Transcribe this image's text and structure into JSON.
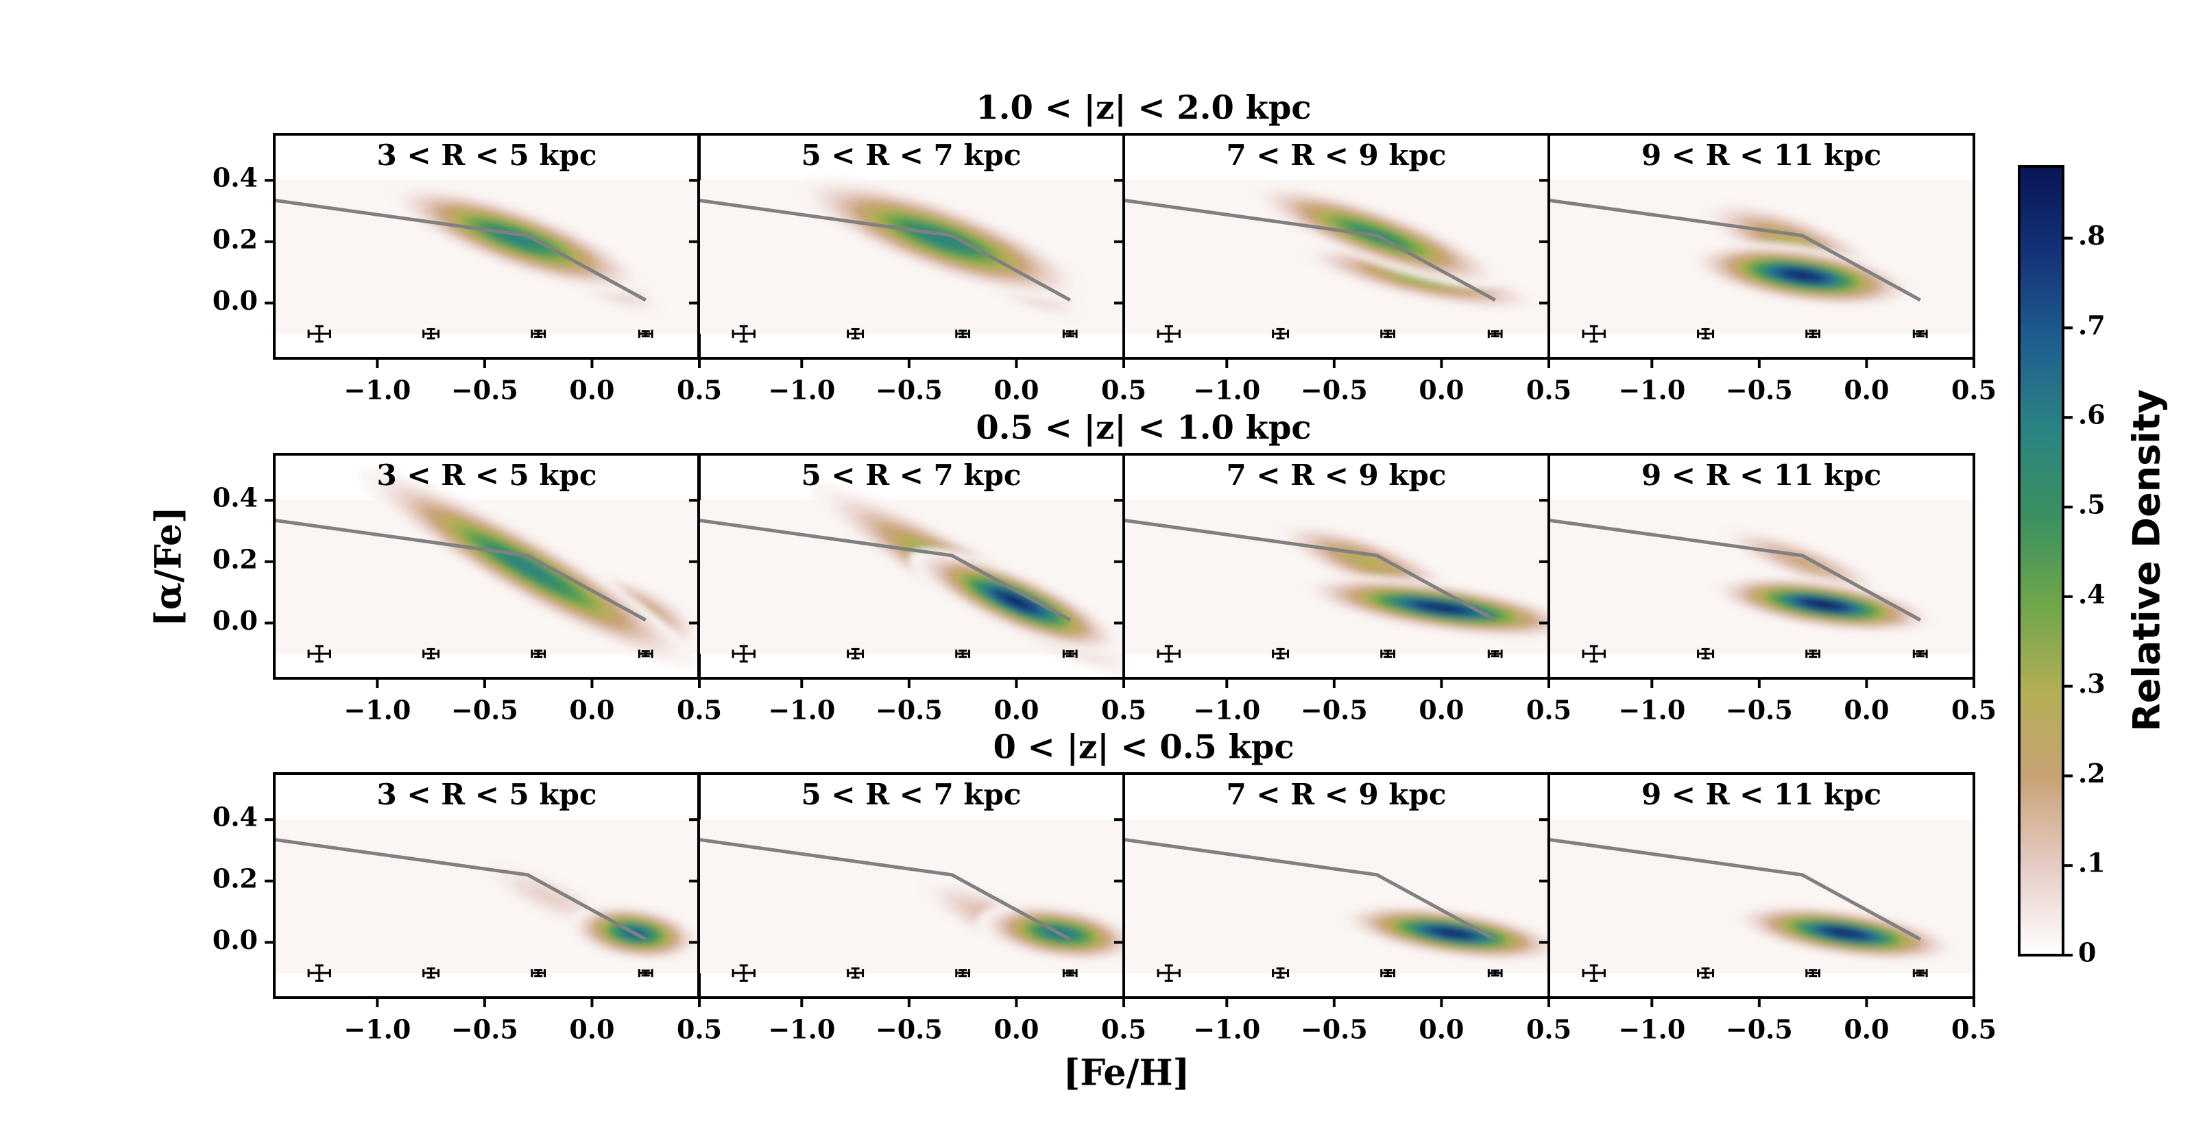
{
  "chart_data": {
    "type": "density_grid",
    "xlabel": "[Fe/H]",
    "ylabel": "[α/Fe]",
    "xlim": [
      -1.48,
      0.5
    ],
    "ylim": [
      -0.18,
      0.55
    ],
    "xticks": [
      {
        "value": -1.0,
        "label": "−1.0"
      },
      {
        "value": -0.5,
        "label": "−0.5"
      },
      {
        "value": 0.0,
        "label": "0.0"
      },
      {
        "value": 0.5,
        "label": "0.5"
      }
    ],
    "yticks": [
      {
        "value": 0.0,
        "label": "0.0"
      },
      {
        "value": 0.2,
        "label": "0.2"
      },
      {
        "value": 0.4,
        "label": "0.4"
      }
    ],
    "kde_bounds": {
      "x": [
        -1.48,
        0.5
      ],
      "y": [
        -0.1,
        0.4
      ],
      "color": "#fbf5f4"
    },
    "boundary": {
      "x": [
        -1.48,
        -0.3,
        0.25
      ],
      "y": [
        0.335,
        0.22,
        0.01
      ],
      "color": "#808080"
    },
    "error_bars": {
      "x": [
        -1.27,
        -0.75,
        -0.25,
        0.25
      ],
      "y": [
        -0.1,
        -0.1,
        -0.1,
        -0.1
      ],
      "xerr": [
        0.05,
        0.035,
        0.03,
        0.03
      ],
      "yerr": [
        0.025,
        0.015,
        0.01,
        0.008
      ]
    },
    "colorbar": {
      "label": "Relative Density",
      "clim": [
        0,
        0.88
      ],
      "ticks": [
        0,
        {
          "value": 0.1,
          "label": ".1"
        },
        {
          "value": 0.2,
          "label": ".2"
        },
        {
          "value": 0.3,
          "label": ".3"
        },
        {
          "value": 0.4,
          "label": ".4"
        },
        {
          "value": 0.5,
          "label": ".5"
        },
        {
          "value": 0.6,
          "label": ".6"
        },
        {
          "value": 0.7,
          "label": ".7"
        },
        {
          "value": 0.8,
          "label": ".8"
        }
      ],
      "colors": [
        "#ffffff",
        "#e6cdc6",
        "#c9a276",
        "#b3ae55",
        "#6fa64a",
        "#3a9160",
        "#2b8483",
        "#1f5f90",
        "#14337a",
        "#081556"
      ]
    },
    "rows": [
      {
        "title": "1.0 < |z| < 2.0 kpc",
        "panels": [
          {
            "title": "3 < R < 5 kpc",
            "blobs": [
              {
                "x": 0.0,
                "y": 0.1,
                "sx": 0.2,
                "sy": 0.04,
                "slope": -0.4,
                "peak": 0.15
              },
              {
                "x": -0.35,
                "y": 0.21,
                "sx": 0.25,
                "sy": 0.04,
                "slope": -0.25,
                "peak": 0.6
              }
            ]
          },
          {
            "title": "5 < R < 7 kpc",
            "blobs": [
              {
                "x": -0.05,
                "y": 0.1,
                "sx": 0.2,
                "sy": 0.04,
                "slope": -0.4,
                "peak": 0.2
              },
              {
                "x": -0.35,
                "y": 0.21,
                "sx": 0.28,
                "sy": 0.045,
                "slope": -0.25,
                "peak": 0.6
              }
            ]
          },
          {
            "title": "7 < R < 9 kpc",
            "blobs": [
              {
                "x": -0.1,
                "y": 0.08,
                "sx": 0.25,
                "sy": 0.03,
                "slope": -0.15,
                "peak": 0.35
              },
              {
                "x": -0.3,
                "y": 0.22,
                "sx": 0.25,
                "sy": 0.035,
                "slope": -0.25,
                "peak": 0.55
              }
            ]
          },
          {
            "title": "9 < R < 11 kpc",
            "blobs": [
              {
                "x": -0.35,
                "y": 0.2,
                "sx": 0.2,
                "sy": 0.04,
                "slope": -0.25,
                "peak": 0.3
              },
              {
                "x": -0.3,
                "y": 0.09,
                "sx": 0.2,
                "sy": 0.035,
                "slope": -0.1,
                "peak": 0.85
              }
            ]
          }
        ]
      },
      {
        "title": "0.5 < |z| < 1.0 kpc",
        "panels": [
          {
            "title": "3 < R < 5 kpc",
            "blobs": [
              {
                "x": 0.2,
                "y": 0.04,
                "sx": 0.15,
                "sy": 0.04,
                "slope": -0.3,
                "peak": 0.3
              },
              {
                "x": -0.3,
                "y": 0.18,
                "sx": 0.35,
                "sy": 0.04,
                "slope": -0.4,
                "peak": 0.6
              }
            ]
          },
          {
            "title": "5 < R < 7 kpc",
            "blobs": [
              {
                "x": -0.2,
                "y": 0.14,
                "sx": 0.35,
                "sy": 0.04,
                "slope": -0.4,
                "peak": 0.5
              },
              {
                "x": 0.0,
                "y": 0.07,
                "sx": 0.2,
                "sy": 0.035,
                "slope": -0.3,
                "peak": 0.85
              }
            ]
          },
          {
            "title": "7 < R < 9 kpc",
            "blobs": [
              {
                "x": -0.35,
                "y": 0.2,
                "sx": 0.2,
                "sy": 0.035,
                "slope": -0.25,
                "peak": 0.3
              },
              {
                "x": 0.0,
                "y": 0.05,
                "sx": 0.25,
                "sy": 0.03,
                "slope": -0.1,
                "peak": 0.85
              }
            ]
          },
          {
            "title": "9 < R < 11 kpc",
            "blobs": [
              {
                "x": -0.3,
                "y": 0.2,
                "sx": 0.2,
                "sy": 0.03,
                "slope": -0.25,
                "peak": 0.2
              },
              {
                "x": -0.2,
                "y": 0.06,
                "sx": 0.2,
                "sy": 0.03,
                "slope": -0.1,
                "peak": 0.88
              }
            ]
          }
        ]
      },
      {
        "title": "0 < |z| < 0.5 kpc",
        "panels": [
          {
            "title": "3 < R < 5 kpc",
            "blobs": [
              {
                "x": -0.2,
                "y": 0.15,
                "sx": 0.2,
                "sy": 0.04,
                "slope": -0.3,
                "peak": 0.1
              },
              {
                "x": 0.2,
                "y": 0.03,
                "sx": 0.12,
                "sy": 0.035,
                "slope": -0.1,
                "peak": 0.7
              }
            ]
          },
          {
            "title": "5 < R < 7 kpc",
            "blobs": [
              {
                "x": -0.1,
                "y": 0.08,
                "sx": 0.2,
                "sy": 0.04,
                "slope": -0.3,
                "peak": 0.15
              },
              {
                "x": 0.2,
                "y": 0.03,
                "sx": 0.15,
                "sy": 0.035,
                "slope": -0.1,
                "peak": 0.65
              }
            ]
          },
          {
            "title": "7 < R < 9 kpc",
            "blobs": [
              {
                "x": 0.05,
                "y": 0.03,
                "sx": 0.2,
                "sy": 0.03,
                "slope": -0.1,
                "peak": 0.85
              }
            ]
          },
          {
            "title": "9 < R < 11 kpc",
            "blobs": [
              {
                "x": -0.1,
                "y": 0.03,
                "sx": 0.2,
                "sy": 0.03,
                "slope": -0.1,
                "peak": 0.85
              }
            ]
          }
        ]
      }
    ]
  }
}
